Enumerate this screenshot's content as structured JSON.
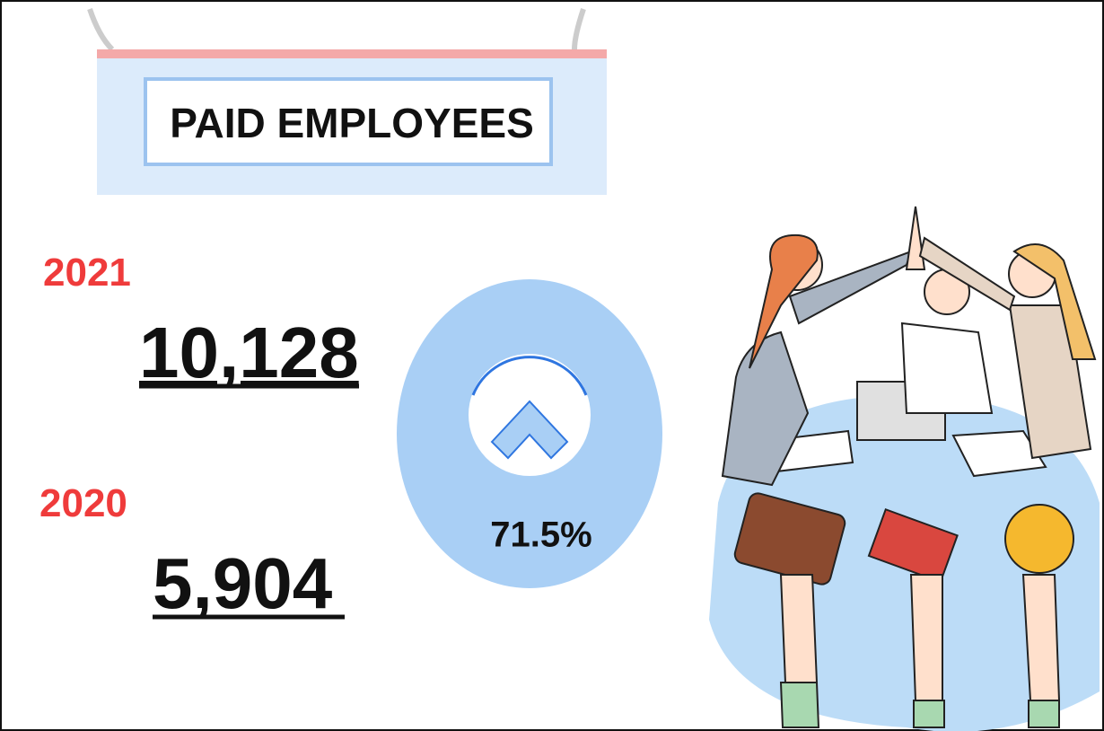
{
  "header": {
    "title": "PAID EMPLOYEES"
  },
  "stats": [
    {
      "year": "2021",
      "value": "10,128"
    },
    {
      "year": "2020",
      "value": "5,904"
    }
  ],
  "change": {
    "label": "71.5%"
  }
}
